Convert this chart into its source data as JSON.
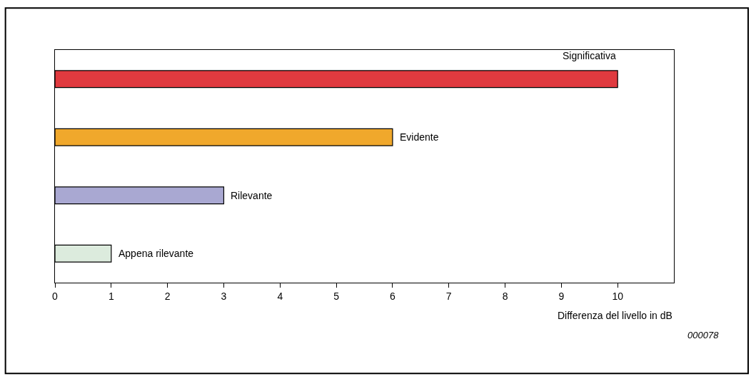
{
  "chart_data": {
    "type": "bar",
    "orientation": "horizontal",
    "xlabel": "Differenza del livello in dB",
    "categories": [
      "Significativa",
      "Evidente",
      "Rilevante",
      "Appena rilevante"
    ],
    "values": [
      10,
      6,
      3,
      1
    ],
    "colors": [
      "#e03a3f",
      "#f0a82c",
      "#a9a8d2",
      "#dcebdd"
    ],
    "xlim": [
      0,
      11
    ],
    "xticks": [
      0,
      1,
      2,
      3,
      4,
      5,
      6,
      7,
      8,
      9,
      10
    ],
    "tick_labels": "x",
    "legend": false,
    "annotations": [
      "000078"
    ]
  }
}
